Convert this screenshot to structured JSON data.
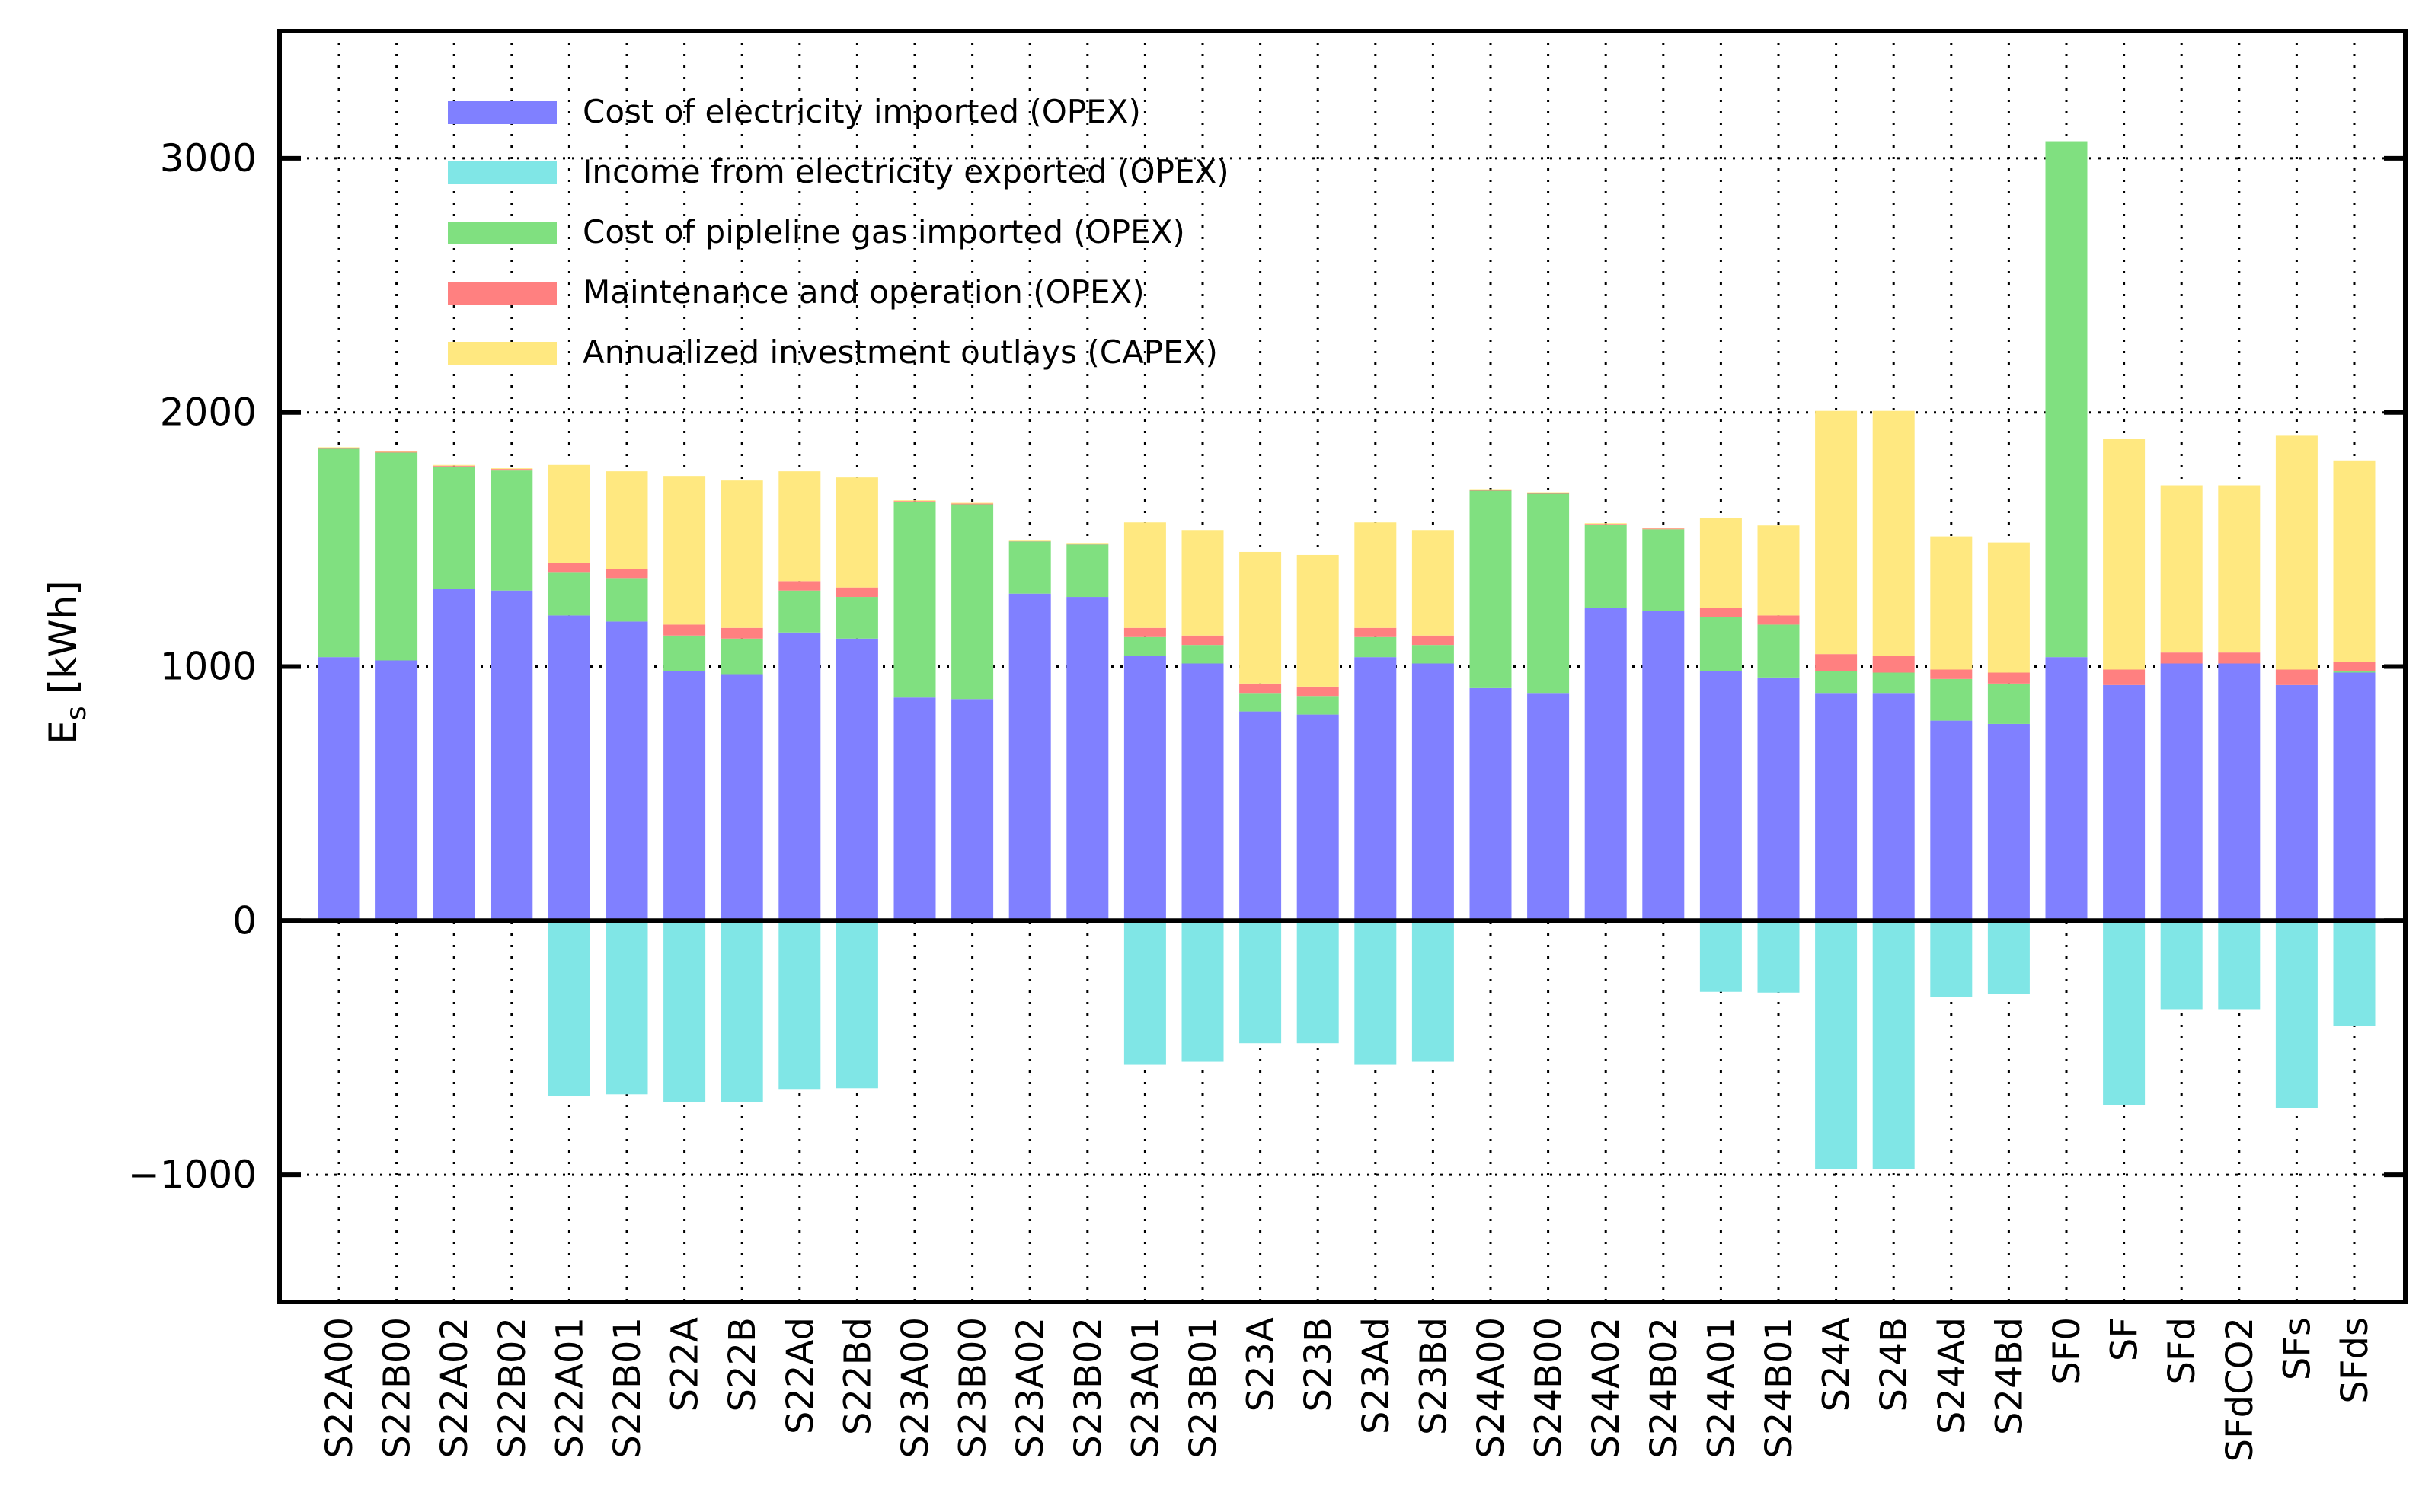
{
  "chart_data": {
    "type": "bar",
    "stacked": true,
    "title": "",
    "xlabel": "",
    "ylabel": "E",
    "ylabel_subscript": "s",
    "ylabel_unit": "[kWh]",
    "ylim": [
      -1500,
      3500
    ],
    "yticks": [
      -1000,
      0,
      1000,
      2000,
      3000
    ],
    "ytick_labels": [
      "−1000",
      "0",
      "1000",
      "2000",
      "3000"
    ],
    "grid": true,
    "legend_position": "top-left",
    "categories": [
      "S22A00",
      "S22B00",
      "S22A02",
      "S22B02",
      "S22A01",
      "S22B01",
      "S22A",
      "S22B",
      "S22Ad",
      "S22Bd",
      "S23A00",
      "S23B00",
      "S23A02",
      "S23B02",
      "S23A01",
      "S23B01",
      "S23A",
      "S23B",
      "S23Ad",
      "S23Bd",
      "S24A00",
      "S24B00",
      "S24A02",
      "S24B02",
      "S24A01",
      "S24B01",
      "S24A",
      "S24B",
      "S24Ad",
      "S24Bd",
      "SF0",
      "SF",
      "SFd",
      "SFdCO2",
      "SFs",
      "SFds"
    ],
    "series": [
      {
        "name": "Cost of electricity imported (OPEX)",
        "color": "#8080ff",
        "values": [
          1037,
          1024,
          1305,
          1299,
          1201,
          1177,
          982,
          970,
          1134,
          1110,
          878,
          872,
          1287,
          1274,
          1043,
          1012,
          823,
          811,
          1037,
          1012,
          915,
          896,
          1232,
          1220,
          982,
          957,
          896,
          896,
          787,
          774,
          1037,
          927,
          1012,
          1012,
          927,
          976
        ]
      },
      {
        "name": "Income from electricity exported (OPEX)",
        "color": "#80e6e6",
        "values": [
          0,
          0,
          0,
          0,
          -689,
          -683,
          -713,
          -713,
          -665,
          -659,
          -5,
          0,
          0,
          -5,
          -567,
          -555,
          -482,
          -482,
          -567,
          -555,
          -5,
          0,
          0,
          0,
          -280,
          -283,
          -976,
          -976,
          -299,
          -287,
          0,
          -726,
          -348,
          -348,
          -738,
          -415
        ]
      },
      {
        "name": "Cost of pipleline gas imported (OPEX)",
        "color": "#80e080",
        "values": [
          820,
          818,
          482,
          475,
          171,
          171,
          140,
          140,
          165,
          164,
          770,
          766,
          205,
          206,
          73,
          73,
          73,
          73,
          79,
          73,
          777,
          784,
          326,
          320,
          213,
          208,
          86,
          80,
          164,
          159,
          2030,
          0,
          0,
          0,
          0,
          5
        ]
      },
      {
        "name": "Maintenance and operation (OPEX)",
        "color": "#ff8080",
        "values": [
          3,
          3,
          3,
          3,
          37,
          36,
          43,
          42,
          37,
          37,
          3,
          3,
          3,
          3,
          36,
          37,
          37,
          37,
          36,
          37,
          3,
          3,
          3,
          3,
          37,
          36,
          67,
          67,
          37,
          43,
          0,
          61,
          43,
          43,
          61,
          37
        ]
      },
      {
        "name": "Annualized investment outlays (CAPEX)",
        "color": "#ffe880",
        "values": [
          3,
          3,
          3,
          3,
          384,
          384,
          585,
          580,
          432,
          433,
          3,
          3,
          3,
          3,
          415,
          415,
          518,
          518,
          415,
          415,
          3,
          3,
          3,
          3,
          353,
          354,
          957,
          963,
          524,
          512,
          0,
          908,
          658,
          658,
          920,
          793
        ]
      }
    ]
  }
}
